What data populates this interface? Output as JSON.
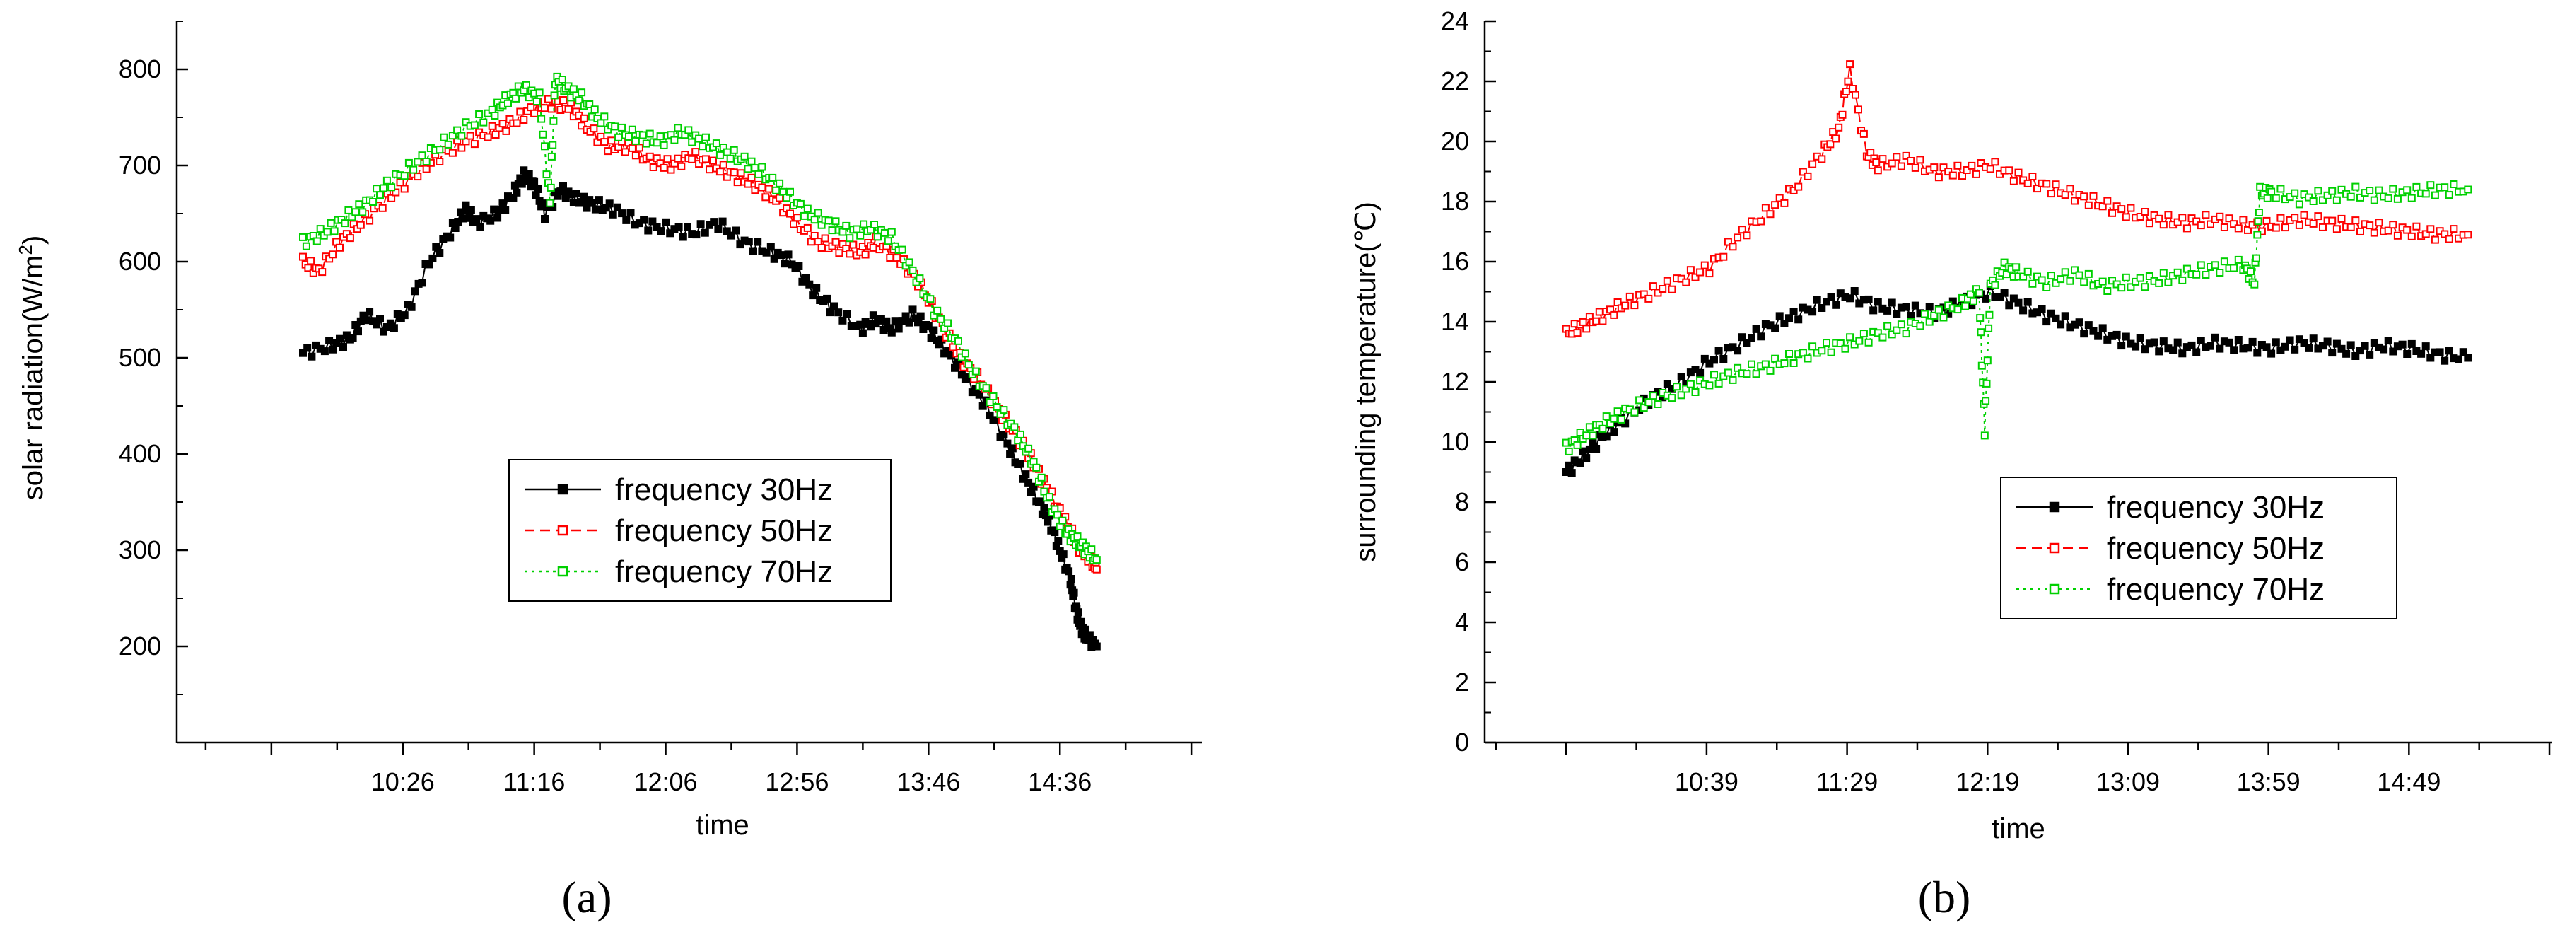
{
  "chart_data": [
    {
      "panel": "(a)",
      "type": "scatter",
      "title": "",
      "xlabel": "time",
      "ylabel": "solar radiation(W/m²)",
      "ylabel_parts": [
        "solar radiation(W/m",
        "2",
        ")"
      ],
      "ylim": [
        100,
        850
      ],
      "yticks": [
        200,
        300,
        400,
        500,
        600,
        700,
        800
      ],
      "xlim": [
        540,
        930
      ],
      "xticks": [
        {
          "label": "10:26",
          "minutes": 626
        },
        {
          "label": "11:16",
          "minutes": 676
        },
        {
          "label": "12:06",
          "minutes": 726
        },
        {
          "label": "12:56",
          "minutes": 776
        },
        {
          "label": "13:46",
          "minutes": 826
        },
        {
          "label": "14:36",
          "minutes": 876
        }
      ],
      "grid": false,
      "legend_position": "center-right",
      "series": [
        {
          "name": "frequency 30Hz",
          "color": "#000000",
          "marker": "filled-square",
          "line": "solid",
          "x": [
            588,
            598,
            606,
            612,
            620,
            628,
            636,
            644,
            650,
            654,
            662,
            668,
            672,
            676,
            680,
            686,
            692,
            698,
            706,
            716,
            726,
            736,
            746,
            756,
            766,
            774,
            782,
            790,
            800,
            806,
            812,
            820,
            826,
            832,
            840,
            848,
            856,
            862,
            868,
            872,
            876,
            880,
            882,
            884,
            886,
            890
          ],
          "y": [
            505,
            512,
            520,
            545,
            530,
            550,
            600,
            630,
            655,
            640,
            650,
            670,
            690,
            680,
            650,
            675,
            665,
            660,
            655,
            640,
            635,
            630,
            640,
            620,
            610,
            600,
            570,
            550,
            530,
            540,
            530,
            545,
            530,
            510,
            480,
            450,
            410,
            380,
            350,
            330,
            300,
            270,
            240,
            220,
            210,
            200
          ]
        },
        {
          "name": "frequency 50Hz",
          "color": "#ff0000",
          "marker": "open-square",
          "line": "dashed",
          "x": [
            588,
            594,
            602,
            610,
            620,
            630,
            640,
            650,
            660,
            668,
            676,
            684,
            690,
            696,
            704,
            712,
            720,
            728,
            736,
            744,
            752,
            760,
            768,
            776,
            784,
            792,
            800,
            806,
            814,
            822,
            830,
            838,
            846,
            854,
            862,
            868,
            874,
            880,
            884,
            888,
            890
          ],
          "y": [
            600,
            590,
            620,
            640,
            665,
            690,
            710,
            725,
            735,
            745,
            760,
            765,
            760,
            740,
            720,
            720,
            705,
            700,
            710,
            700,
            690,
            680,
            665,
            640,
            620,
            615,
            610,
            620,
            605,
            580,
            540,
            500,
            475,
            440,
            410,
            380,
            350,
            320,
            300,
            290,
            280
          ]
        },
        {
          "name": "frequency 70Hz",
          "color": "#00d000",
          "marker": "open-square",
          "line": "dotted",
          "x": [
            588,
            596,
            604,
            612,
            620,
            630,
            640,
            650,
            660,
            666,
            672,
            678,
            682,
            684,
            688,
            694,
            700,
            708,
            716,
            724,
            732,
            740,
            748,
            756,
            764,
            772,
            780,
            788,
            796,
            804,
            812,
            820,
            828,
            836,
            844,
            852,
            860,
            866,
            872,
            878,
            882,
            886,
            890
          ],
          "y": [
            620,
            630,
            645,
            660,
            680,
            700,
            720,
            740,
            755,
            770,
            780,
            770,
            660,
            790,
            780,
            770,
            750,
            735,
            730,
            725,
            735,
            725,
            715,
            705,
            690,
            670,
            650,
            640,
            630,
            635,
            625,
            590,
            550,
            520,
            480,
            450,
            420,
            390,
            350,
            320,
            310,
            300,
            290
          ]
        }
      ]
    },
    {
      "panel": "(b)",
      "type": "scatter",
      "title": "",
      "xlabel": "time",
      "ylabel": "surrounding temperature(℃)",
      "ylim": [
        0,
        24
      ],
      "yticks": [
        0,
        2,
        4,
        6,
        8,
        10,
        12,
        14,
        16,
        18,
        20,
        22,
        24
      ],
      "xlim": [
        560,
        940
      ],
      "xticks": [
        {
          "label": "10:39",
          "minutes": 639
        },
        {
          "label": "11:29",
          "minutes": 689
        },
        {
          "label": "12:19",
          "minutes": 739
        },
        {
          "label": "13:09",
          "minutes": 789
        },
        {
          "label": "13:59",
          "minutes": 839
        },
        {
          "label": "14:49",
          "minutes": 889
        }
      ],
      "grid": false,
      "legend_position": "lower-right",
      "series": [
        {
          "name": "frequency 30Hz",
          "color": "#000000",
          "marker": "filled-square",
          "line": "solid",
          "x": [
            589,
            595,
            602,
            610,
            620,
            630,
            640,
            650,
            660,
            670,
            680,
            690,
            700,
            710,
            720,
            730,
            740,
            750,
            760,
            770,
            780,
            790,
            800,
            810,
            820,
            830,
            840,
            850,
            860,
            870,
            880,
            890,
            900,
            910
          ],
          "y": [
            9.0,
            9.5,
            10.2,
            10.8,
            11.5,
            12.0,
            12.7,
            13.2,
            13.8,
            14.2,
            14.6,
            14.9,
            14.5,
            14.4,
            14.3,
            14.6,
            15.0,
            14.6,
            14.2,
            13.9,
            13.6,
            13.3,
            13.2,
            13.1,
            13.3,
            13.2,
            13.1,
            13.3,
            13.2,
            13.0,
            13.2,
            13.1,
            12.9,
            12.8
          ]
        },
        {
          "name": "frequency 50Hz",
          "color": "#ff0000",
          "marker": "open-square",
          "line": "dashed",
          "x": [
            589,
            595,
            602,
            610,
            620,
            630,
            640,
            650,
            660,
            670,
            680,
            686,
            690,
            696,
            700,
            710,
            720,
            730,
            740,
            750,
            760,
            770,
            780,
            790,
            800,
            810,
            820,
            830,
            840,
            850,
            860,
            870,
            880,
            890,
            900,
            910
          ],
          "y": [
            13.6,
            13.9,
            14.2,
            14.6,
            15.0,
            15.4,
            15.8,
            16.8,
            17.6,
            18.4,
            19.6,
            20.4,
            22.4,
            19.6,
            19.2,
            19.4,
            19.0,
            19.0,
            19.2,
            18.8,
            18.5,
            18.2,
            17.9,
            17.6,
            17.4,
            17.3,
            17.4,
            17.2,
            17.2,
            17.4,
            17.3,
            17.2,
            17.1,
            17.0,
            16.9,
            16.9
          ]
        },
        {
          "name": "frequency 70Hz",
          "color": "#00d000",
          "marker": "open-square",
          "line": "dotted",
          "x": [
            589,
            595,
            602,
            610,
            620,
            630,
            640,
            650,
            660,
            670,
            680,
            690,
            700,
            710,
            720,
            730,
            736,
            738,
            740,
            745,
            750,
            760,
            770,
            780,
            790,
            800,
            810,
            820,
            830,
            834,
            836,
            840,
            850,
            860,
            870,
            880,
            890,
            900,
            910
          ],
          "y": [
            9.8,
            10.2,
            10.6,
            11.0,
            11.4,
            11.7,
            12.0,
            12.3,
            12.5,
            12.8,
            13.1,
            13.3,
            13.6,
            13.8,
            14.2,
            14.6,
            15.0,
            10.4,
            15.2,
            15.8,
            15.6,
            15.3,
            15.6,
            15.2,
            15.3,
            15.4,
            15.6,
            15.8,
            15.9,
            15.3,
            18.3,
            18.3,
            18.1,
            18.2,
            18.3,
            18.2,
            18.3,
            18.4,
            18.4
          ]
        }
      ]
    }
  ]
}
